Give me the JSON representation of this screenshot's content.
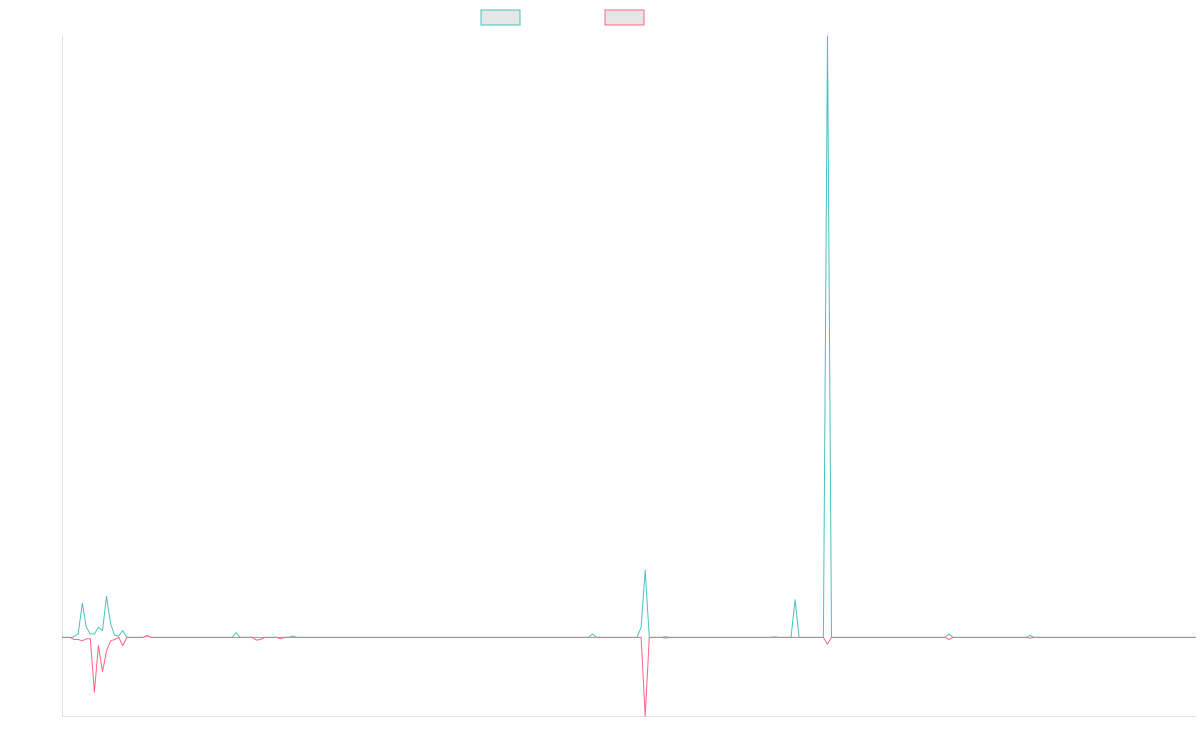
{
  "chart_data": {
    "type": "line",
    "title": "",
    "xlabel": "",
    "ylabel": "",
    "legend": "top-center",
    "grid": false,
    "series": [
      {
        "name": "",
        "color": "#4bc0c0",
        "legend_fill": "#e6e6e6",
        "points": [
          [
            0,
            0
          ],
          [
            2.5,
            0
          ],
          [
            4,
            0.5
          ],
          [
            5,
            5
          ],
          [
            6,
            1.5
          ],
          [
            7,
            0.5
          ],
          [
            8,
            0.5
          ],
          [
            9,
            1.5
          ],
          [
            10,
            1
          ],
          [
            11,
            6
          ],
          [
            12,
            2
          ],
          [
            13,
            0.3
          ],
          [
            14,
            0.2
          ],
          [
            15,
            1
          ],
          [
            16,
            0
          ],
          [
            20,
            0
          ],
          [
            21,
            0.3
          ],
          [
            22,
            0
          ],
          [
            42,
            0
          ],
          [
            43,
            0.7
          ],
          [
            44,
            0
          ],
          [
            56,
            0
          ],
          [
            57,
            0.2
          ],
          [
            58,
            0
          ],
          [
            69,
            0
          ],
          [
            71,
            0
          ],
          [
            130,
            0
          ],
          [
            131,
            0.5
          ],
          [
            132,
            0
          ],
          [
            142,
            0
          ],
          [
            143,
            1.5
          ],
          [
            144,
            9.8
          ],
          [
            145,
            0
          ],
          [
            148,
            0
          ],
          [
            149,
            0.1
          ],
          [
            150,
            0
          ],
          [
            175,
            0
          ],
          [
            176,
            0.1
          ],
          [
            177,
            0
          ],
          [
            180,
            0
          ],
          [
            181,
            5.5
          ],
          [
            182,
            0
          ],
          [
            188,
            0
          ],
          [
            189,
            88
          ],
          [
            190,
            0
          ],
          [
            218,
            0
          ],
          [
            219,
            0.5
          ],
          [
            220,
            0
          ],
          [
            238,
            0
          ],
          [
            239,
            0.3
          ],
          [
            240,
            0
          ],
          [
            280,
            0
          ]
        ]
      },
      {
        "name": "",
        "color": "#ff6384",
        "legend_fill": "#e6e6e6",
        "points": [
          [
            0,
            0
          ],
          [
            2,
            0
          ],
          [
            3,
            -0.3
          ],
          [
            4,
            -0.3
          ],
          [
            5,
            -0.5
          ],
          [
            6,
            -0.2
          ],
          [
            7,
            -0.2
          ],
          [
            8,
            -8
          ],
          [
            9,
            -1.2
          ],
          [
            10,
            -5
          ],
          [
            11,
            -2
          ],
          [
            12,
            -0.5
          ],
          [
            13,
            -0.3
          ],
          [
            14,
            0
          ],
          [
            15,
            -1.2
          ],
          [
            16,
            0
          ],
          [
            20,
            0
          ],
          [
            21,
            0.2
          ],
          [
            22,
            0
          ],
          [
            47,
            0
          ],
          [
            48,
            -0.4
          ],
          [
            49,
            -0.3
          ],
          [
            50,
            0
          ],
          [
            53,
            0
          ],
          [
            54,
            -0.2
          ],
          [
            55,
            0
          ],
          [
            143,
            0
          ],
          [
            144,
            -11.5
          ],
          [
            145,
            0
          ],
          [
            148,
            0
          ],
          [
            149,
            -0.1
          ],
          [
            150,
            0
          ],
          [
            188,
            0
          ],
          [
            189,
            -1
          ],
          [
            190,
            0
          ],
          [
            218,
            0
          ],
          [
            219,
            -0.3
          ],
          [
            220,
            0
          ],
          [
            238,
            0
          ],
          [
            239,
            -0.1
          ],
          [
            240,
            0
          ],
          [
            280,
            0
          ]
        ]
      }
    ],
    "xlim": [
      0,
      280
    ],
    "ylim": [
      -11.5,
      88
    ]
  }
}
